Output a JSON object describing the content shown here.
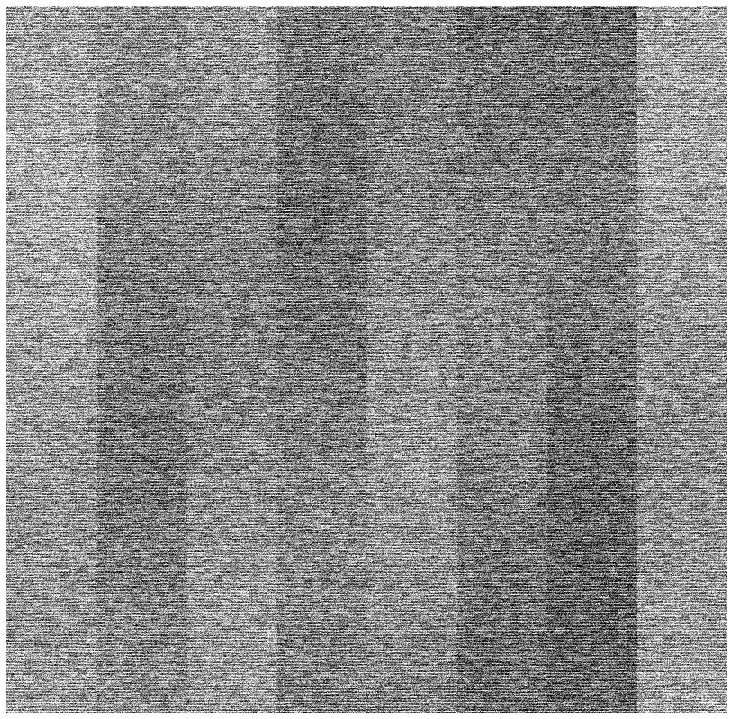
{
  "image": {
    "description_kind": "grayscale-noise-texture",
    "background_color": "#ffffff",
    "base_gray": "#6b6b6b",
    "columns": 8,
    "column_brightness": [
      0.62,
      0.5,
      0.55,
      0.47,
      0.54,
      0.47,
      0.42,
      0.6
    ],
    "band_period_rows": 3,
    "streak_style": "horizontal-scanlines"
  }
}
